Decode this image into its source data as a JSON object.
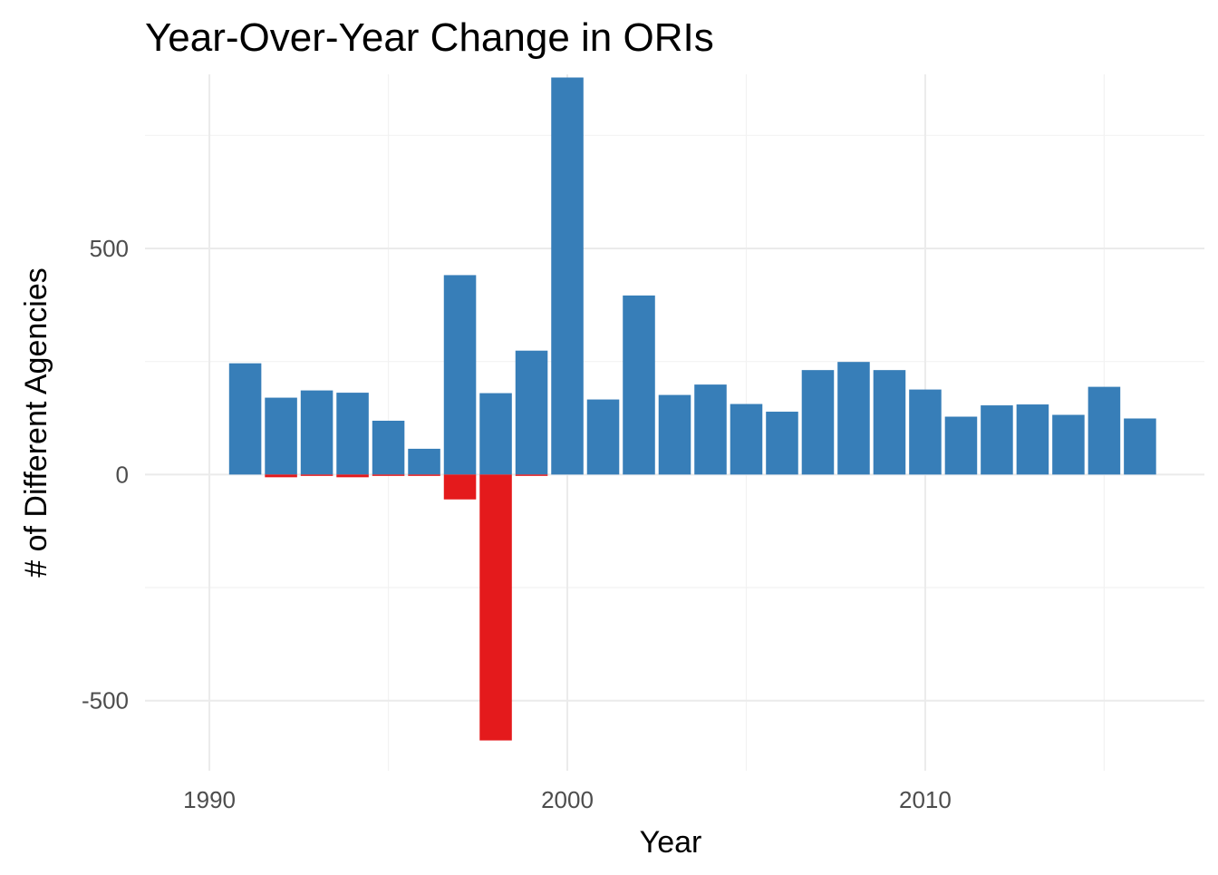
{
  "chart_data": {
    "type": "bar",
    "title": "Year-Over-Year Change in ORIs",
    "xlabel": "Year",
    "ylabel": "# of Different Agencies",
    "xlim": [
      1988.2,
      2017.8
    ],
    "ylim": [
      -655,
      885
    ],
    "x_ticks": [
      1990,
      2000,
      2010
    ],
    "y_ticks": [
      -500,
      0,
      500
    ],
    "grid": true,
    "legend": "none",
    "colors": {
      "added": "#377eb8",
      "removed": "#e41a1c"
    },
    "series": [
      {
        "key": "added",
        "x": [
          1991,
          1992,
          1993,
          1994,
          1995,
          1996,
          1997,
          1998,
          1999,
          2000,
          2001,
          2002,
          2003,
          2004,
          2005,
          2006,
          2007,
          2008,
          2009,
          2010,
          2011,
          2012,
          2013,
          2014,
          2015,
          2016
        ],
        "values": [
          246,
          170,
          186,
          181,
          119,
          57,
          441,
          180,
          274,
          878,
          166,
          396,
          176,
          199,
          156,
          139,
          231,
          249,
          231,
          188,
          128,
          153,
          155,
          132,
          194,
          124
        ]
      },
      {
        "key": "removed",
        "x": [
          1992,
          1993,
          1994,
          1995,
          1996,
          1997,
          1998,
          1999
        ],
        "values": [
          -6,
          -3,
          -6,
          -3,
          -3,
          -55,
          -588,
          -3
        ]
      }
    ]
  }
}
